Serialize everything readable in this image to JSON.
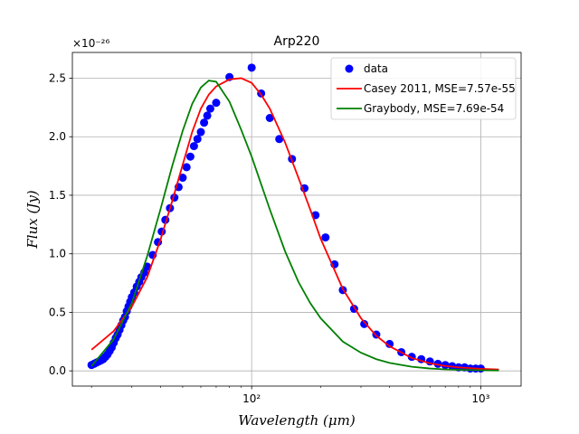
{
  "chart_data": {
    "type": "line",
    "title": "Arp220",
    "xlabel": "Wavelength (μm)",
    "ylabel": "Flux (Jy)",
    "x_scale": "log",
    "xlim": [
      16.5,
      1500
    ],
    "ylim": [
      -0.13,
      2.72
    ],
    "y_multiplier_label": "×10⁻²⁶",
    "grid": true,
    "legend_position": "top-right",
    "x_ticks": [
      {
        "value": 100,
        "label": "10²"
      },
      {
        "value": 1000,
        "label": "10³"
      }
    ],
    "y_ticks": [
      {
        "value": 0.0,
        "label": "0.0"
      },
      {
        "value": 0.5,
        "label": "0.5"
      },
      {
        "value": 1.0,
        "label": "1.0"
      },
      {
        "value": 1.5,
        "label": "1.5"
      },
      {
        "value": 2.0,
        "label": "2.0"
      },
      {
        "value": 2.5,
        "label": "2.5"
      }
    ],
    "series": [
      {
        "name": "data",
        "kind": "scatter",
        "color": "#0000ff",
        "points": [
          [
            20.0,
            0.05
          ],
          [
            20.5,
            0.06
          ],
          [
            21.0,
            0.07
          ],
          [
            21.5,
            0.08
          ],
          [
            22.0,
            0.09
          ],
          [
            22.5,
            0.1
          ],
          [
            23.0,
            0.12
          ],
          [
            23.5,
            0.14
          ],
          [
            24.0,
            0.17
          ],
          [
            24.5,
            0.2
          ],
          [
            25.0,
            0.24
          ],
          [
            25.5,
            0.28
          ],
          [
            26.0,
            0.31
          ],
          [
            26.5,
            0.35
          ],
          [
            27.0,
            0.39
          ],
          [
            27.5,
            0.43
          ],
          [
            28.0,
            0.46
          ],
          [
            28.5,
            0.51
          ],
          [
            29.0,
            0.55
          ],
          [
            29.5,
            0.59
          ],
          [
            30.0,
            0.63
          ],
          [
            30.7,
            0.67
          ],
          [
            31.5,
            0.72
          ],
          [
            32.3,
            0.76
          ],
          [
            33.0,
            0.8
          ],
          [
            34.0,
            0.84
          ],
          [
            35.0,
            0.89
          ],
          [
            37.0,
            0.99
          ],
          [
            39.0,
            1.1
          ],
          [
            40.5,
            1.19
          ],
          [
            42.0,
            1.29
          ],
          [
            44.0,
            1.39
          ],
          [
            46.0,
            1.48
          ],
          [
            48.0,
            1.57
          ],
          [
            50.0,
            1.65
          ],
          [
            52.0,
            1.74
          ],
          [
            54.0,
            1.83
          ],
          [
            56.0,
            1.92
          ],
          [
            58.0,
            1.98
          ],
          [
            60.0,
            2.04
          ],
          [
            62.0,
            2.12
          ],
          [
            64.0,
            2.18
          ],
          [
            66.0,
            2.24
          ],
          [
            70.0,
            2.29
          ],
          [
            80.0,
            2.51
          ],
          [
            100.0,
            2.59
          ],
          [
            110.0,
            2.37
          ],
          [
            120.0,
            2.16
          ],
          [
            132.0,
            1.98
          ],
          [
            150.0,
            1.81
          ],
          [
            170.0,
            1.56
          ],
          [
            190.0,
            1.33
          ],
          [
            210.0,
            1.14
          ],
          [
            230.0,
            0.91
          ],
          [
            250.0,
            0.69
          ],
          [
            280.0,
            0.53
          ],
          [
            310.0,
            0.4
          ],
          [
            350.0,
            0.31
          ],
          [
            400.0,
            0.23
          ],
          [
            450.0,
            0.16
          ],
          [
            500.0,
            0.12
          ],
          [
            550.0,
            0.1
          ],
          [
            600.0,
            0.08
          ],
          [
            650.0,
            0.06
          ],
          [
            700.0,
            0.05
          ],
          [
            750.0,
            0.04
          ],
          [
            800.0,
            0.03
          ],
          [
            850.0,
            0.03
          ],
          [
            900.0,
            0.02
          ],
          [
            950.0,
            0.02
          ],
          [
            1000.0,
            0.02
          ]
        ]
      },
      {
        "name": "Casey 2011, MSE=7.57e-55",
        "kind": "line",
        "color": "#ff0000",
        "points": [
          [
            20,
            0.18
          ],
          [
            25,
            0.34
          ],
          [
            30,
            0.55
          ],
          [
            35,
            0.8
          ],
          [
            40,
            1.12
          ],
          [
            45,
            1.45
          ],
          [
            50,
            1.76
          ],
          [
            55,
            2.04
          ],
          [
            60,
            2.24
          ],
          [
            65,
            2.36
          ],
          [
            70,
            2.43
          ],
          [
            80,
            2.49
          ],
          [
            90,
            2.5
          ],
          [
            100,
            2.46
          ],
          [
            110,
            2.36
          ],
          [
            120,
            2.24
          ],
          [
            140,
            1.95
          ],
          [
            160,
            1.65
          ],
          [
            180,
            1.38
          ],
          [
            200,
            1.13
          ],
          [
            250,
            0.7
          ],
          [
            300,
            0.45
          ],
          [
            350,
            0.3
          ],
          [
            400,
            0.21
          ],
          [
            500,
            0.11
          ],
          [
            600,
            0.065
          ],
          [
            700,
            0.042
          ],
          [
            800,
            0.03
          ],
          [
            1000,
            0.018
          ],
          [
            1200,
            0.012
          ]
        ]
      },
      {
        "name": "Graybody, MSE=7.69e-54",
        "kind": "line",
        "color": "#008000",
        "points": [
          [
            20,
            0.04
          ],
          [
            25,
            0.27
          ],
          [
            30,
            0.58
          ],
          [
            35,
            0.98
          ],
          [
            40,
            1.38
          ],
          [
            45,
            1.75
          ],
          [
            50,
            2.05
          ],
          [
            55,
            2.28
          ],
          [
            60,
            2.42
          ],
          [
            65,
            2.48
          ],
          [
            70,
            2.47
          ],
          [
            80,
            2.3
          ],
          [
            90,
            2.06
          ],
          [
            100,
            1.83
          ],
          [
            120,
            1.38
          ],
          [
            140,
            1.02
          ],
          [
            160,
            0.76
          ],
          [
            180,
            0.58
          ],
          [
            200,
            0.45
          ],
          [
            250,
            0.25
          ],
          [
            300,
            0.155
          ],
          [
            350,
            0.1
          ],
          [
            400,
            0.068
          ],
          [
            500,
            0.035
          ],
          [
            600,
            0.02
          ],
          [
            700,
            0.013
          ],
          [
            800,
            0.009
          ],
          [
            1000,
            0.005
          ],
          [
            1200,
            0.003
          ]
        ]
      }
    ]
  }
}
